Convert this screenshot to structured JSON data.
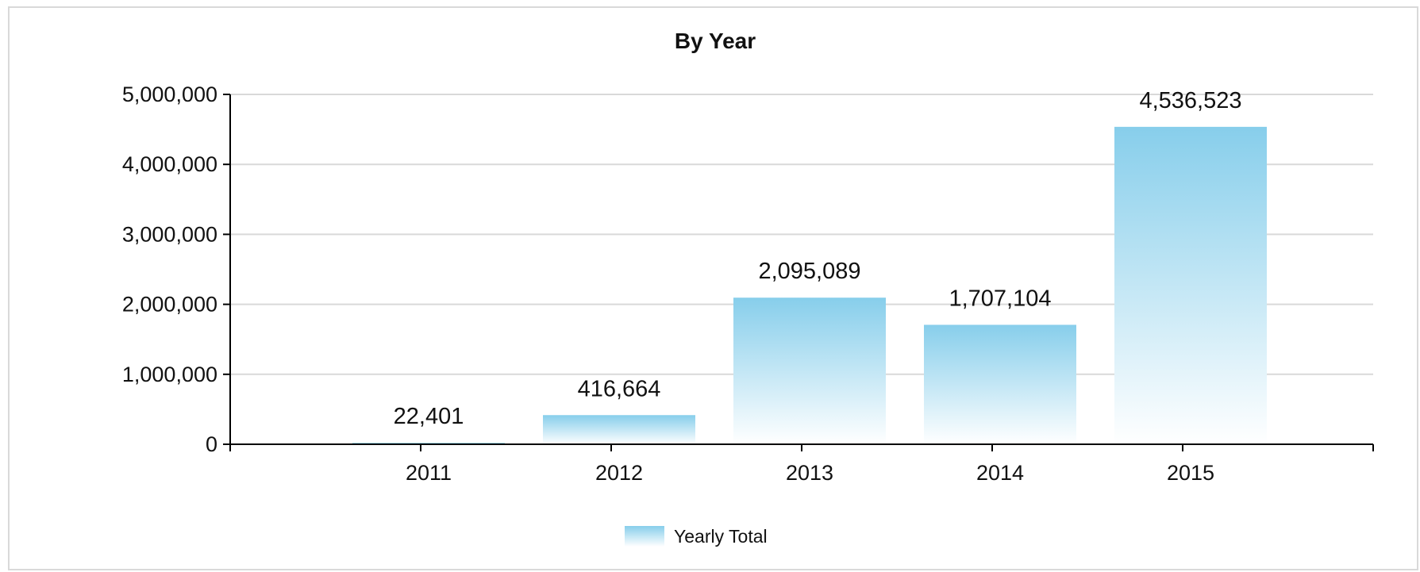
{
  "chart_data": {
    "type": "bar",
    "title": "By Year",
    "categories": [
      "2011",
      "2012",
      "2013",
      "2014",
      "2015"
    ],
    "series": [
      {
        "name": "Yearly Total",
        "values": [
          22401,
          416664,
          2095089,
          1707104,
          4536523
        ],
        "labels": [
          "22,401",
          "416,664",
          "2,095,089",
          "1,707,104",
          "4,536,523"
        ]
      }
    ],
    "ylim": [
      0,
      5000000
    ],
    "yticks": [
      0,
      1000000,
      2000000,
      3000000,
      4000000,
      5000000
    ],
    "ytick_labels": [
      "0",
      "1,000,000",
      "2,000,000",
      "3,000,000",
      "4,000,000",
      "5,000,000"
    ],
    "grid": true,
    "legend_position": "bottom-center",
    "colors": {
      "bar_top": "#87ceeb",
      "bar_bottom": "#ffffff",
      "grid": "#d9d9d9",
      "axis": "#000000"
    }
  }
}
